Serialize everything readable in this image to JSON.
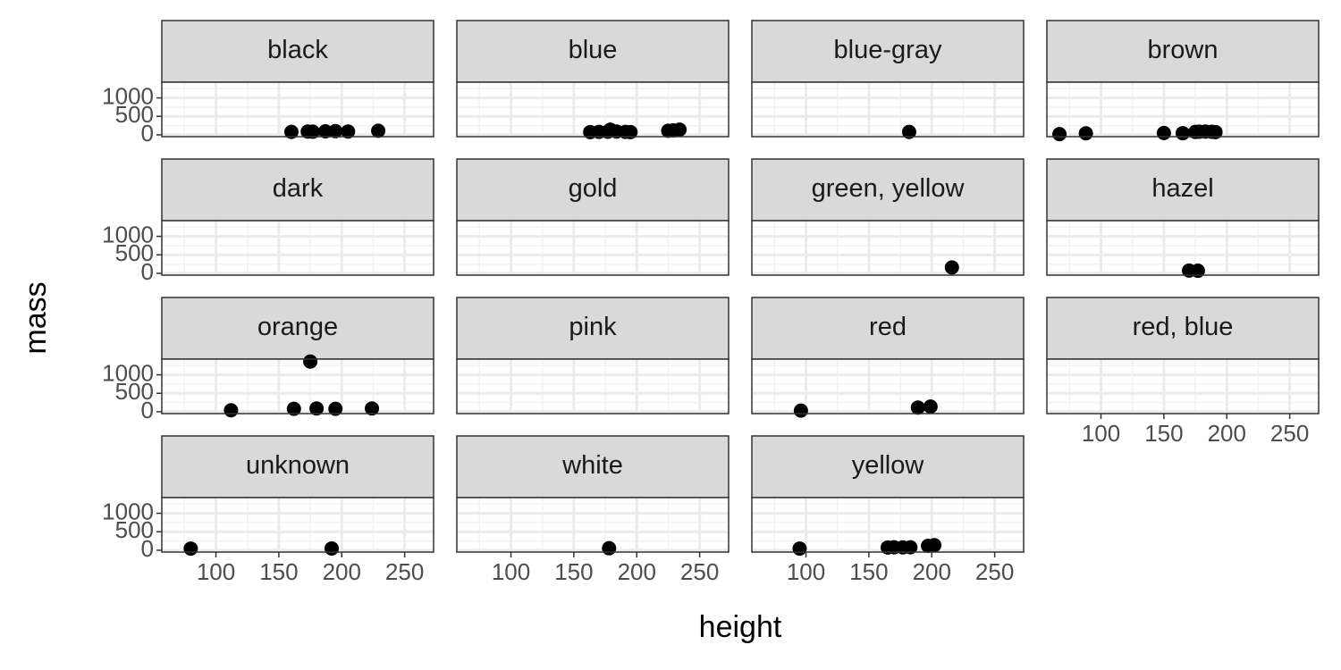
{
  "chart_data": {
    "type": "scatter",
    "xlabel": "height",
    "ylabel": "mass",
    "xlim": [
      57,
      273
    ],
    "ylim": [
      -50,
      1425
    ],
    "xticks": [
      100,
      150,
      200,
      250
    ],
    "yticks": [
      0,
      500,
      1000
    ],
    "xminorticks": [
      75,
      125,
      175,
      225
    ],
    "yminorticks": [
      250,
      750,
      1250
    ],
    "grid": true,
    "color": "#000000",
    "panels": [
      {
        "title": "black",
        "x": [
          160,
          173,
          177,
          187,
          195,
          205,
          229
        ],
        "y": [
          80,
          90,
          85,
          95,
          100,
          90,
          110
        ]
      },
      {
        "title": "blue",
        "x": [
          163,
          170,
          177,
          179,
          184,
          191,
          195,
          225,
          229,
          234
        ],
        "y": [
          75,
          80,
          85,
          140,
          90,
          80,
          75,
          110,
          120,
          140
        ]
      },
      {
        "title": "blue-gray",
        "x": [
          182
        ],
        "y": [
          80
        ]
      },
      {
        "title": "brown",
        "x": [
          67,
          88,
          150,
          165,
          175,
          178,
          183,
          188,
          191
        ],
        "y": [
          20,
          40,
          50,
          45,
          80,
          85,
          90,
          84,
          75
        ]
      },
      {
        "title": "dark",
        "x": [],
        "y": []
      },
      {
        "title": "gold",
        "x": [],
        "y": []
      },
      {
        "title": "green, yellow",
        "x": [
          216
        ],
        "y": [
          159
        ]
      },
      {
        "title": "hazel",
        "x": [
          170,
          177
        ],
        "y": [
          75,
          70
        ]
      },
      {
        "title": "orange",
        "x": [
          112,
          162,
          175,
          180,
          195,
          224
        ],
        "y": [
          40,
          80,
          1358,
          90,
          80,
          90
        ]
      },
      {
        "title": "pink",
        "x": [],
        "y": []
      },
      {
        "title": "red",
        "x": [
          96,
          189,
          199
        ],
        "y": [
          32,
          113,
          140
        ]
      },
      {
        "title": "red, blue",
        "x": [],
        "y": []
      },
      {
        "title": "unknown",
        "x": [
          80,
          192
        ],
        "y": [
          45,
          48
        ]
      },
      {
        "title": "white",
        "x": [
          178
        ],
        "y": [
          55
        ]
      },
      {
        "title": "yellow",
        "x": [
          95,
          165,
          170,
          177,
          183,
          197,
          202
        ],
        "y": [
          45,
          75,
          80,
          78,
          80,
          120,
          136
        ]
      }
    ]
  }
}
